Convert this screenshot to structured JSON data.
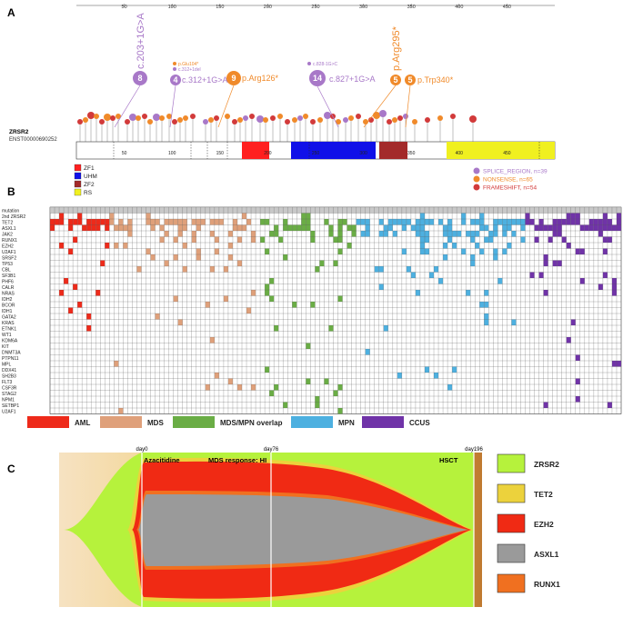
{
  "panels": {
    "a": "A",
    "b": "B",
    "c": "C"
  },
  "colors": {
    "splice": "#a878c8",
    "nonsense": "#f08a2a",
    "frameshift": "#d23a3a",
    "zf1": "#ff2020",
    "uhm": "#1010e8",
    "zf2": "#a32a2a",
    "rs": "#f0f020",
    "aml": "#ee2a1a",
    "mds": "#dfa07a",
    "mdsmpn": "#6aad45",
    "mpn": "#4db0e0",
    "ccus": "#7033a8"
  },
  "panel_a": {
    "top_axis_ticks": [
      "50",
      "100",
      "150",
      "200",
      "250",
      "300",
      "350",
      "400",
      "450"
    ],
    "gene": "ZRSR2",
    "transcript": "ENST00000690252",
    "track_ticks": [
      "50",
      "100",
      "150",
      "200",
      "250",
      "300",
      "350",
      "400",
      "450"
    ],
    "domains": [
      {
        "name": "ZF1",
        "color": "#ff2020"
      },
      {
        "name": "UHM",
        "color": "#1010e8"
      },
      {
        "name": "ZF2",
        "color": "#a32a2a"
      },
      {
        "name": "RS",
        "color": "#f0f020"
      }
    ],
    "legend": [
      {
        "label": "SPLICE_REGION, n=39",
        "color": "#a878c8"
      },
      {
        "label": "NONSENSE, n=65",
        "color": "#f08a2a"
      },
      {
        "label": "FRAMESHIFT, n=54",
        "color": "#d23a3a"
      }
    ],
    "hotspots": [
      {
        "count": "8",
        "label": "c.203+1G>A",
        "color": "#a878c8"
      },
      {
        "count": "4",
        "label": "c.312+1G>A",
        "color": "#a878c8"
      },
      {
        "count": "9",
        "label": "p.Arg126*",
        "color": "#f08a2a"
      },
      {
        "count": "14",
        "label": "c.827+1G>A",
        "color": "#a878c8"
      },
      {
        "count": "5",
        "label": "p.Arg295*",
        "color": "#f08a2a"
      },
      {
        "count": "5",
        "label": "p.Trp340*",
        "color": "#f08a2a"
      }
    ],
    "small_labels": [
      {
        "text": "p.Glu104*",
        "color": "#f08a2a"
      },
      {
        "text": "c.312+1del",
        "color": "#a878c8"
      },
      {
        "text": "c.828-1G>C",
        "color": "#a878c8"
      }
    ]
  },
  "panel_b": {
    "rows": [
      "mutation",
      "2nd ZRSR2",
      "TET2",
      "ASXL1",
      "JAK2",
      "RUNX1",
      "EZH2",
      "U2AF1",
      "SRSF2",
      "TP53",
      "CBL",
      "SF3B1",
      "PHF6",
      "CALR",
      "NRAS",
      "IDH2",
      "BCOR",
      "IDH1",
      "GATA2",
      "KRAS",
      "ETNK1",
      "WT1",
      "KDM6A",
      "KIT",
      "DNMT3A",
      "PTPN11",
      "MPL",
      "DDX41",
      "SH2B3",
      "FLT3",
      "CSF3R",
      "STAG2",
      "NPM1",
      "SETBP1",
      "U2AF1"
    ],
    "columns": 125,
    "groups": [
      {
        "label": "AML",
        "color": "#ee2a1a",
        "cols": 13
      },
      {
        "label": "MDS",
        "color": "#dfa07a",
        "cols": 33
      },
      {
        "label": "MDS/MPN overlap",
        "color": "#6aad45",
        "cols": 21
      },
      {
        "label": "MPN",
        "color": "#4db0e0",
        "cols": 37
      },
      {
        "label": "CCUS",
        "color": "#7033a8",
        "cols": 21
      }
    ]
  },
  "panel_c": {
    "timepoints": [
      "day0",
      "day76",
      "day196"
    ],
    "annotations": [
      "Azacitidine",
      "MDS response: HI",
      "HSCT"
    ],
    "legend": [
      {
        "label": "ZRSR2",
        "color": "#b6f23c"
      },
      {
        "label": "TET2",
        "color": "#ecd23c"
      },
      {
        "label": "EZH2",
        "color": "#f02a14"
      },
      {
        "label": "ASXL1",
        "color": "#9a9a9a"
      },
      {
        "label": "RUNX1",
        "color": "#f07020"
      }
    ]
  }
}
